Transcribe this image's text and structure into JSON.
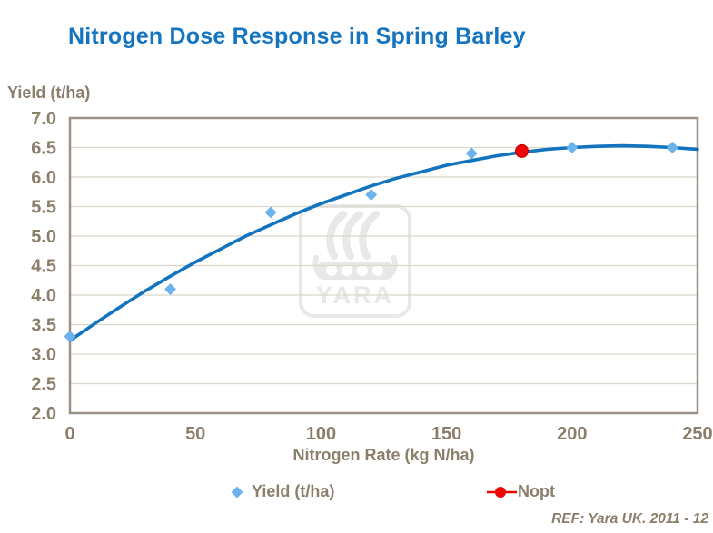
{
  "title": "Nitrogen Dose Response in Spring Barley",
  "y_axis_title": "Yield (t/ha)",
  "x_axis_title": "Nitrogen Rate (kg N/ha)",
  "footer_ref": "REF: Yara UK. 2011 - 12",
  "watermark_text": "YARA",
  "legend": {
    "yield_label": "Yield (t/ha)",
    "nopt_label": "Nopt"
  },
  "colors": {
    "title": "#1574BF",
    "axis_text": "#8B7E6A",
    "plot_border": "#9C9184",
    "gridline": "#DCD6CC",
    "curve": "#1273BE",
    "yield_marker": "#6CB3EE",
    "nopt_marker": "#EE0505",
    "watermark": "#E8E8E8",
    "background": "#FFFFFF"
  },
  "chart_data": {
    "type": "scatter",
    "title": "Nitrogen Dose Response in Spring Barley",
    "xlabel": "Nitrogen Rate (kg N/ha)",
    "ylabel": "Yield (t/ha)",
    "xlim": [
      0,
      250
    ],
    "ylim": [
      2.0,
      7.0
    ],
    "x_ticks": [
      0,
      50,
      100,
      150,
      200,
      250
    ],
    "y_ticks": [
      2.0,
      2.5,
      3.0,
      3.5,
      4.0,
      4.5,
      5.0,
      5.5,
      6.0,
      6.5,
      7.0
    ],
    "grid": true,
    "legend_position": "bottom",
    "series": [
      {
        "name": "Yield (t/ha)",
        "marker": "diamond",
        "x": [
          0,
          40,
          80,
          120,
          160,
          200,
          240
        ],
        "y": [
          3.3,
          4.1,
          5.4,
          5.7,
          6.4,
          6.5,
          6.5
        ]
      },
      {
        "name": "Nopt",
        "marker": "circle",
        "x": [
          180
        ],
        "y": [
          6.44
        ]
      }
    ],
    "fit_curve": {
      "name": "fitted dose-response curve",
      "x": [
        0,
        10,
        20,
        30,
        40,
        50,
        60,
        70,
        80,
        90,
        100,
        110,
        120,
        130,
        140,
        150,
        160,
        170,
        180,
        190,
        200,
        210,
        220,
        230,
        240,
        250
      ],
      "y": [
        3.23,
        3.52,
        3.8,
        4.07,
        4.32,
        4.56,
        4.78,
        5.0,
        5.19,
        5.38,
        5.55,
        5.7,
        5.85,
        5.98,
        6.09,
        6.2,
        6.28,
        6.36,
        6.42,
        6.47,
        6.5,
        6.52,
        6.53,
        6.52,
        6.5,
        6.47
      ]
    }
  }
}
